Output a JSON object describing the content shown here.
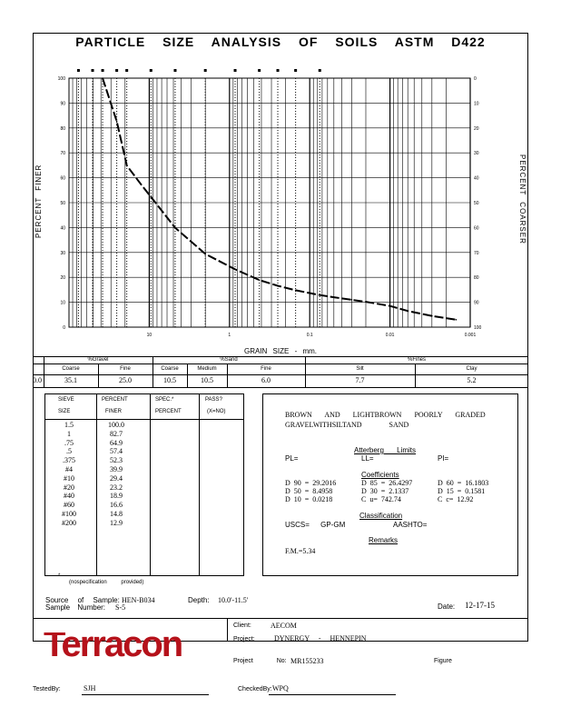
{
  "title": "PARTICLE SIZE ANALYSIS OF SOILS ASTM D422",
  "axes": {
    "y_left_label": "PERCENT FINER",
    "y_right_label": "PERCENT COARSER",
    "x_label": "GRAIN SIZE - mm.",
    "y_left_ticks": [
      "100",
      "90",
      "80",
      "70",
      "60",
      "50",
      "40",
      "30",
      "20",
      "10",
      "0"
    ],
    "y_right_ticks": [
      "0",
      "10",
      "20",
      "30",
      "40",
      "50",
      "60",
      "70",
      "80",
      "90",
      "100"
    ],
    "x_ticks": [
      "10",
      "1",
      "0.1",
      "0.01",
      "0.001"
    ]
  },
  "chart_data": {
    "type": "line",
    "title": "PARTICLE SIZE ANALYSIS OF SOILS ASTM D422",
    "xlabel": "GRAIN SIZE - mm.",
    "ylabel": "PERCENT FINER",
    "x_scale": "log",
    "x_reversed": true,
    "xlim": [
      100,
      0.001
    ],
    "ylim": [
      0,
      100
    ],
    "grid": true,
    "series": [
      {
        "x": [
          38.1,
          25.4,
          19.05,
          12.7,
          9.525,
          4.75,
          2.0,
          0.85,
          0.425,
          0.25,
          0.15,
          0.075,
          0.05,
          0.03,
          0.02,
          0.01,
          0.006,
          0.003,
          0.0015
        ],
        "y": [
          100.0,
          82.7,
          64.9,
          57.4,
          52.3,
          39.9,
          29.4,
          23.2,
          18.9,
          16.6,
          14.8,
          12.9,
          12.0,
          11.0,
          10.2,
          8.5,
          6.5,
          4.5,
          3.0
        ]
      }
    ],
    "top_markers_mm": [
      76.2,
      50.8,
      38.1,
      25.4,
      19.05,
      9.525,
      4.75,
      2.0,
      0.85,
      0.425,
      0.25,
      0.15,
      0.075
    ]
  },
  "gradation": {
    "groups": [
      "%Gravel",
      "%Sand",
      "%Fines"
    ],
    "subheads": [
      "Coarse",
      "Fine",
      "Coarse",
      "Medium",
      "Fine",
      "Silt",
      "Clay"
    ],
    "values": [
      "0.0",
      "35.1",
      "25.0",
      "10.5",
      "10.5",
      "6.0",
      "7.7",
      "5.2"
    ]
  },
  "sieve": {
    "headers": [
      "SIEVE",
      "PERCENT",
      "SPEC.*",
      "PASS?"
    ],
    "subheaders": [
      "SIZE",
      "FINER",
      "PERCENT",
      "(X=NO)"
    ],
    "sizes": [
      "1.5",
      "1",
      ".75",
      ".5",
      ".375",
      "#4",
      "#10",
      "#20",
      "#40",
      "#60",
      "#100",
      "#200"
    ],
    "finer": [
      "100.0",
      "82.7",
      "64.9",
      "57.4",
      "52.3",
      "39.9",
      "29.4",
      "23.2",
      "18.9",
      "16.6",
      "14.8",
      "12.9"
    ],
    "footnote_star": "*",
    "footnote": "(nospecification provided)"
  },
  "description": {
    "line1": "BROWN AND LIGHTBROWN POORLY GRADED",
    "line2": "GRAVELWITHSILTAND SAND"
  },
  "atterberg": {
    "heading": "Atterberg Limits",
    "pl": "PL=",
    "ll": "LL=",
    "pi": "PI="
  },
  "coefficients": {
    "heading": "Coefficients",
    "d90": "D 90 = 29.2016",
    "d85": "D 85 = 26.4297",
    "d60": "D 60 = 16.1803",
    "d50": "D 50 = 8.4958",
    "d30": "D 30 = 2.1337",
    "d15": "D 15 = 0.1581",
    "d10": "D 10 = 0.0218",
    "cu": "C u= 742.74",
    "cc": "C c= 12.92"
  },
  "classification": {
    "heading": "Classification",
    "uscs": "USCS= GP-GM",
    "aashto": "AASHTO="
  },
  "remarks": {
    "heading": "Remarks",
    "fm": "F.M.=5.34"
  },
  "sample": {
    "source_label": "Source of Sample:",
    "source_value": "HEN-B034",
    "sample_label": "Sample Number:",
    "sample_value": "S-5",
    "depth_label": "Depth:",
    "depth_value": "10.0'-11.5'",
    "date_label": "Date:",
    "date_value": "12-17-15"
  },
  "company": {
    "logo_text": "Terracon",
    "brand_color": "#b5121b"
  },
  "project": {
    "client_label": "Client:",
    "client_value": "AECOM",
    "project_label": "Project:",
    "project_value": "DYNERGY - HENNEPIN",
    "project_no_label": "Project No:",
    "project_no_value": "MR155233",
    "figure_label": "Figure"
  },
  "signoff": {
    "tested_label": "TestedBy:",
    "tested_value": "SJH",
    "checked_label": "CheckedBy:",
    "checked_value": "WPQ"
  }
}
